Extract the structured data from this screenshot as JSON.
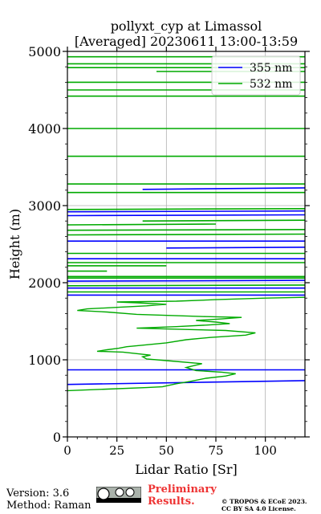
{
  "chart_data": {
    "type": "line",
    "title": "pollyxt_cyp at Limassol",
    "subtitle": "[Averaged] 20230611 13:00-13:59",
    "xlabel": "Lidar Ratio [Sr]",
    "ylabel": "Height (m)",
    "xlim": [
      0,
      120
    ],
    "ylim": [
      0,
      5000
    ],
    "x_ticks": [
      "0",
      "25",
      "50",
      "75",
      "100"
    ],
    "y_ticks": [
      "0",
      "1000",
      "2000",
      "3000",
      "4000",
      "5000"
    ],
    "grid": true,
    "legend": "top-right",
    "series": [
      {
        "name": "355 nm",
        "color": "#0000ff",
        "segments": [
          [
            [
              0,
              680
            ],
            [
              120,
              730
            ]
          ],
          [
            [
              0,
              870
            ],
            [
              120,
              870
            ]
          ],
          [
            [
              0,
              1840
            ],
            [
              120,
              1840
            ]
          ],
          [
            [
              0,
              1930
            ],
            [
              120,
              1930
            ]
          ],
          [
            [
              0,
              2020
            ],
            [
              120,
              2030
            ]
          ],
          [
            [
              0,
              2310
            ],
            [
              120,
              2310
            ]
          ],
          [
            [
              50,
              2450
            ],
            [
              120,
              2460
            ]
          ],
          [
            [
              0,
              2540
            ],
            [
              120,
              2540
            ]
          ],
          [
            [
              0,
              2870
            ],
            [
              120,
              2880
            ]
          ],
          [
            [
              0,
              2920
            ],
            [
              120,
              2930
            ]
          ],
          [
            [
              38,
              3210
            ],
            [
              120,
              3230
            ]
          ]
        ]
      },
      {
        "name": "532 nm",
        "color": "#00aa00",
        "points": [
          [
            0,
            600
          ],
          [
            20,
            620
          ],
          [
            40,
            640
          ],
          [
            48,
            650
          ],
          [
            55,
            690
          ],
          [
            62,
            720
          ],
          [
            70,
            760
          ],
          [
            80,
            790
          ],
          [
            85,
            820
          ],
          [
            78,
            840
          ],
          [
            65,
            860
          ],
          [
            60,
            900
          ],
          [
            68,
            950
          ],
          [
            50,
            990
          ],
          [
            40,
            1010
          ],
          [
            38,
            1040
          ],
          [
            42,
            1060
          ],
          [
            35,
            1080
          ],
          [
            28,
            1100
          ],
          [
            15,
            1110
          ],
          [
            20,
            1130
          ],
          [
            26,
            1150
          ],
          [
            30,
            1170
          ],
          [
            38,
            1190
          ],
          [
            50,
            1220
          ],
          [
            60,
            1260
          ],
          [
            72,
            1290
          ],
          [
            90,
            1320
          ],
          [
            95,
            1350
          ],
          [
            80,
            1380
          ],
          [
            50,
            1400
          ],
          [
            35,
            1410
          ],
          [
            55,
            1430
          ],
          [
            70,
            1450
          ],
          [
            82,
            1470
          ],
          [
            75,
            1490
          ],
          [
            65,
            1510
          ],
          [
            78,
            1530
          ],
          [
            88,
            1550
          ],
          [
            70,
            1560
          ],
          [
            35,
            1590
          ],
          [
            20,
            1620
          ],
          [
            5,
            1640
          ],
          [
            10,
            1660
          ],
          [
            25,
            1680
          ],
          [
            40,
            1700
          ],
          [
            50,
            1720
          ],
          [
            35,
            1740
          ],
          [
            25,
            1750
          ],
          [
            55,
            1760
          ],
          [
            75,
            1780
          ],
          [
            100,
            1800
          ],
          [
            120,
            1810
          ]
        ],
        "segments": [
          [
            [
              0,
              1880
            ],
            [
              120,
              1880
            ]
          ],
          [
            [
              0,
              1960
            ],
            [
              120,
              1970
            ]
          ],
          [
            [
              0,
              2060
            ],
            [
              120,
              2060
            ]
          ],
          [
            [
              0,
              2080
            ],
            [
              120,
              2080
            ]
          ],
          [
            [
              0,
              2150
            ],
            [
              20,
              2150
            ]
          ],
          [
            [
              0,
              2220
            ],
            [
              50,
              2220
            ]
          ],
          [
            [
              0,
              2260
            ],
            [
              120,
              2260
            ]
          ],
          [
            [
              0,
              2380
            ],
            [
              120,
              2380
            ]
          ],
          [
            [
              0,
              2620
            ],
            [
              120,
              2630
            ]
          ],
          [
            [
              0,
              2680
            ],
            [
              120,
              2690
            ]
          ],
          [
            [
              0,
              2750
            ],
            [
              75,
              2760
            ]
          ],
          [
            [
              38,
              2800
            ],
            [
              120,
              2810
            ]
          ],
          [
            [
              0,
              2950
            ],
            [
              120,
              2960
            ]
          ],
          [
            [
              0,
              3170
            ],
            [
              120,
              3170
            ]
          ],
          [
            [
              0,
              3280
            ],
            [
              120,
              3280
            ]
          ],
          [
            [
              0,
              3640
            ],
            [
              120,
              3640
            ]
          ],
          [
            [
              0,
              4000
            ],
            [
              120,
              4000
            ]
          ],
          [
            [
              0,
              4420
            ],
            [
              120,
              4420
            ]
          ],
          [
            [
              0,
              4500
            ],
            [
              120,
              4500
            ]
          ],
          [
            [
              0,
              4600
            ],
            [
              120,
              4600
            ]
          ],
          [
            [
              45,
              4740
            ],
            [
              120,
              4740
            ]
          ],
          [
            [
              0,
              4790
            ],
            [
              120,
              4790
            ]
          ],
          [
            [
              0,
              4840
            ],
            [
              120,
              4840
            ]
          ],
          [
            [
              0,
              4930
            ],
            [
              120,
              4930
            ]
          ]
        ]
      }
    ]
  },
  "footer": {
    "version": "Version: 3.6",
    "method": "Method: Raman",
    "preliminary": "Preliminary Results.",
    "copyright_line1": "© TROPOS & ECoE 2023.",
    "copyright_line2": "CC BY SA 4.0 License."
  },
  "badge": {
    "icon": "cc-by-sa-license-icon"
  }
}
